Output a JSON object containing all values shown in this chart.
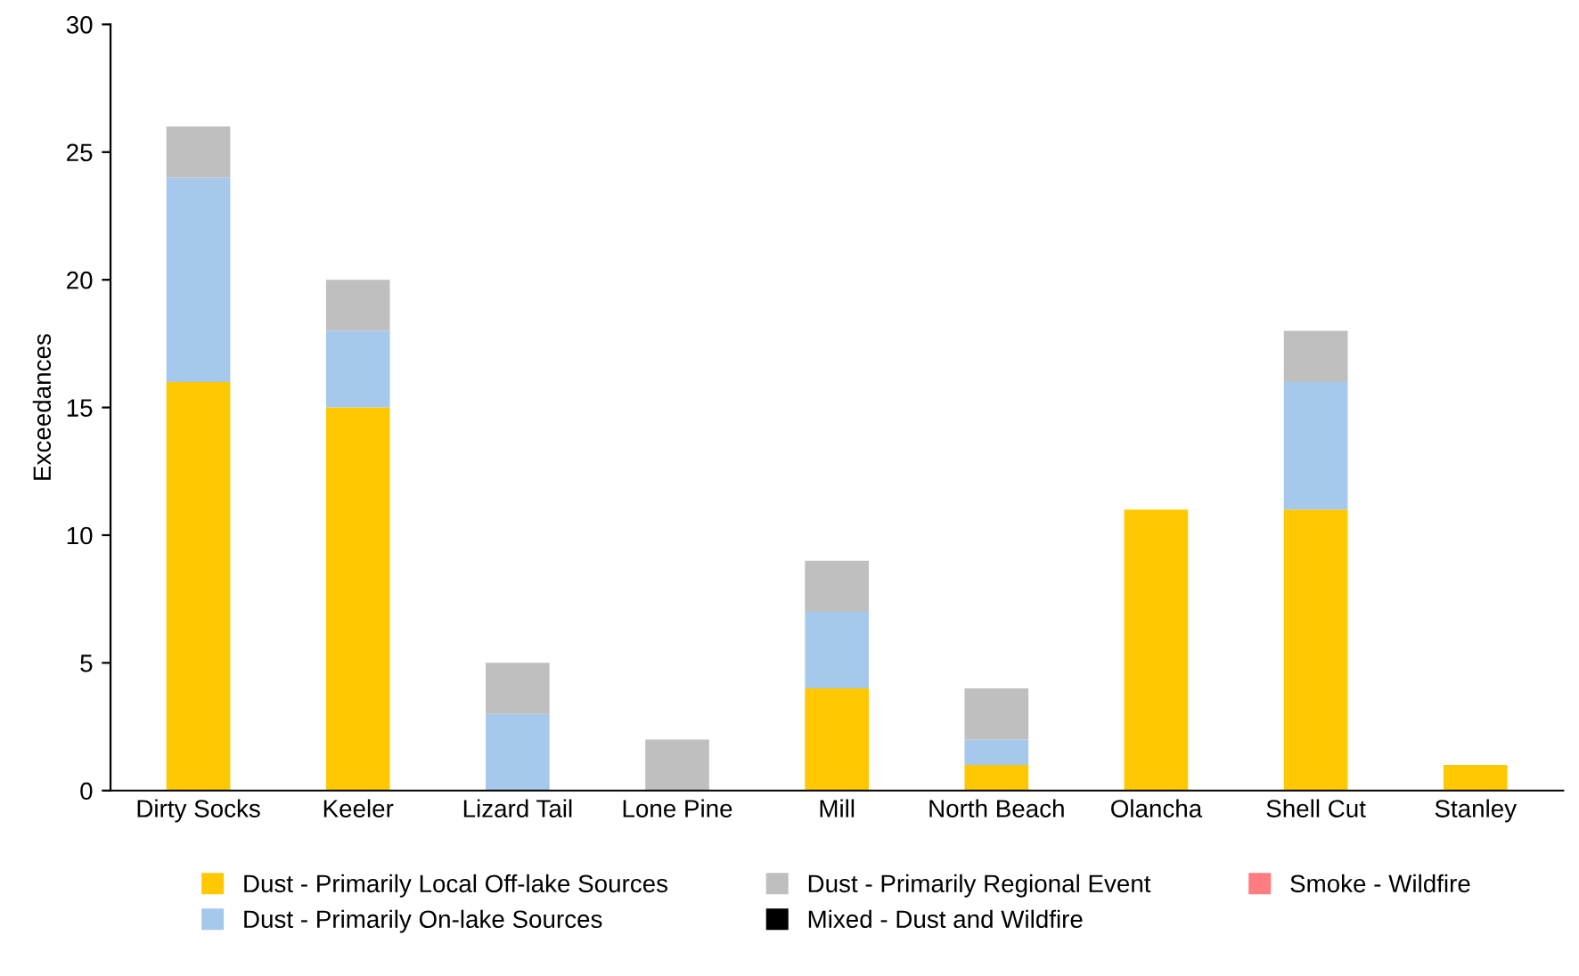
{
  "chart_data": {
    "type": "bar",
    "stacked": true,
    "ylabel": "Exceedances",
    "categories": [
      "Dirty Socks",
      "Keeler",
      "Lizard Tail",
      "Lone Pine",
      "Mill",
      "North Beach",
      "Olancha",
      "Shell Cut",
      "Stanley"
    ],
    "series": [
      {
        "name": "Dust - Primarily Local Off-lake Sources",
        "color": "#ffc800",
        "values": [
          16,
          15,
          0,
          0,
          4,
          1,
          11,
          11,
          1
        ]
      },
      {
        "name": "Dust - Primarily On-lake Sources",
        "color": "#a6c8ec",
        "values": [
          8,
          3,
          3,
          0,
          3,
          1,
          0,
          5,
          0
        ]
      },
      {
        "name": "Dust - Primarily Regional Event",
        "color": "#bfbfbf",
        "values": [
          2,
          2,
          2,
          2,
          2,
          2,
          0,
          2,
          0
        ]
      },
      {
        "name": "Mixed - Dust and Wildfire",
        "color": "#000000",
        "values": [
          0,
          0,
          0,
          0,
          0,
          0,
          0,
          0,
          0
        ]
      },
      {
        "name": "Smoke - Wildfire",
        "color": "#ff7c80",
        "values": [
          0,
          0,
          0,
          0,
          0,
          0,
          0,
          0,
          0
        ]
      }
    ],
    "ylim": [
      0,
      30
    ],
    "yticks": [
      0,
      5,
      10,
      15,
      20,
      25,
      30
    ],
    "grid": false,
    "legend": "bottom"
  }
}
